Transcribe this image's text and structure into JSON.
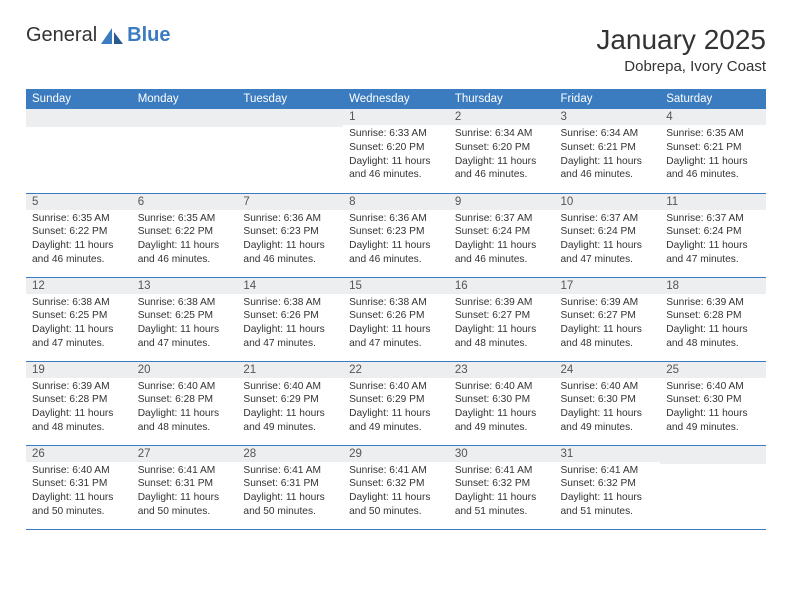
{
  "logo": {
    "text_general": "General",
    "text_blue": "Blue"
  },
  "title": "January 2025",
  "location": "Dobrepa, Ivory Coast",
  "colors": {
    "header_bg": "#3b7bbf",
    "header_text": "#ffffff",
    "daynum_bg": "#eceef0",
    "cell_border": "#3b7bbf",
    "body_text": "#333333"
  },
  "typography": {
    "title_fontsize": 28,
    "location_fontsize": 15,
    "th_fontsize": 11.5,
    "cell_fontsize": 10.2
  },
  "weekdays": [
    "Sunday",
    "Monday",
    "Tuesday",
    "Wednesday",
    "Thursday",
    "Friday",
    "Saturday"
  ],
  "grid": {
    "columns": 7,
    "rows": 5,
    "first_weekday_index": 3
  },
  "days": [
    {
      "n": 1,
      "sunrise": "6:33 AM",
      "sunset": "6:20 PM",
      "daylight": "11 hours and 46 minutes."
    },
    {
      "n": 2,
      "sunrise": "6:34 AM",
      "sunset": "6:20 PM",
      "daylight": "11 hours and 46 minutes."
    },
    {
      "n": 3,
      "sunrise": "6:34 AM",
      "sunset": "6:21 PM",
      "daylight": "11 hours and 46 minutes."
    },
    {
      "n": 4,
      "sunrise": "6:35 AM",
      "sunset": "6:21 PM",
      "daylight": "11 hours and 46 minutes."
    },
    {
      "n": 5,
      "sunrise": "6:35 AM",
      "sunset": "6:22 PM",
      "daylight": "11 hours and 46 minutes."
    },
    {
      "n": 6,
      "sunrise": "6:35 AM",
      "sunset": "6:22 PM",
      "daylight": "11 hours and 46 minutes."
    },
    {
      "n": 7,
      "sunrise": "6:36 AM",
      "sunset": "6:23 PM",
      "daylight": "11 hours and 46 minutes."
    },
    {
      "n": 8,
      "sunrise": "6:36 AM",
      "sunset": "6:23 PM",
      "daylight": "11 hours and 46 minutes."
    },
    {
      "n": 9,
      "sunrise": "6:37 AM",
      "sunset": "6:24 PM",
      "daylight": "11 hours and 46 minutes."
    },
    {
      "n": 10,
      "sunrise": "6:37 AM",
      "sunset": "6:24 PM",
      "daylight": "11 hours and 47 minutes."
    },
    {
      "n": 11,
      "sunrise": "6:37 AM",
      "sunset": "6:24 PM",
      "daylight": "11 hours and 47 minutes."
    },
    {
      "n": 12,
      "sunrise": "6:38 AM",
      "sunset": "6:25 PM",
      "daylight": "11 hours and 47 minutes."
    },
    {
      "n": 13,
      "sunrise": "6:38 AM",
      "sunset": "6:25 PM",
      "daylight": "11 hours and 47 minutes."
    },
    {
      "n": 14,
      "sunrise": "6:38 AM",
      "sunset": "6:26 PM",
      "daylight": "11 hours and 47 minutes."
    },
    {
      "n": 15,
      "sunrise": "6:38 AM",
      "sunset": "6:26 PM",
      "daylight": "11 hours and 47 minutes."
    },
    {
      "n": 16,
      "sunrise": "6:39 AM",
      "sunset": "6:27 PM",
      "daylight": "11 hours and 48 minutes."
    },
    {
      "n": 17,
      "sunrise": "6:39 AM",
      "sunset": "6:27 PM",
      "daylight": "11 hours and 48 minutes."
    },
    {
      "n": 18,
      "sunrise": "6:39 AM",
      "sunset": "6:28 PM",
      "daylight": "11 hours and 48 minutes."
    },
    {
      "n": 19,
      "sunrise": "6:39 AM",
      "sunset": "6:28 PM",
      "daylight": "11 hours and 48 minutes."
    },
    {
      "n": 20,
      "sunrise": "6:40 AM",
      "sunset": "6:28 PM",
      "daylight": "11 hours and 48 minutes."
    },
    {
      "n": 21,
      "sunrise": "6:40 AM",
      "sunset": "6:29 PM",
      "daylight": "11 hours and 49 minutes."
    },
    {
      "n": 22,
      "sunrise": "6:40 AM",
      "sunset": "6:29 PM",
      "daylight": "11 hours and 49 minutes."
    },
    {
      "n": 23,
      "sunrise": "6:40 AM",
      "sunset": "6:30 PM",
      "daylight": "11 hours and 49 minutes."
    },
    {
      "n": 24,
      "sunrise": "6:40 AM",
      "sunset": "6:30 PM",
      "daylight": "11 hours and 49 minutes."
    },
    {
      "n": 25,
      "sunrise": "6:40 AM",
      "sunset": "6:30 PM",
      "daylight": "11 hours and 49 minutes."
    },
    {
      "n": 26,
      "sunrise": "6:40 AM",
      "sunset": "6:31 PM",
      "daylight": "11 hours and 50 minutes."
    },
    {
      "n": 27,
      "sunrise": "6:41 AM",
      "sunset": "6:31 PM",
      "daylight": "11 hours and 50 minutes."
    },
    {
      "n": 28,
      "sunrise": "6:41 AM",
      "sunset": "6:31 PM",
      "daylight": "11 hours and 50 minutes."
    },
    {
      "n": 29,
      "sunrise": "6:41 AM",
      "sunset": "6:32 PM",
      "daylight": "11 hours and 50 minutes."
    },
    {
      "n": 30,
      "sunrise": "6:41 AM",
      "sunset": "6:32 PM",
      "daylight": "11 hours and 51 minutes."
    },
    {
      "n": 31,
      "sunrise": "6:41 AM",
      "sunset": "6:32 PM",
      "daylight": "11 hours and 51 minutes."
    }
  ],
  "labels": {
    "sunrise": "Sunrise:",
    "sunset": "Sunset:",
    "daylight": "Daylight:"
  }
}
